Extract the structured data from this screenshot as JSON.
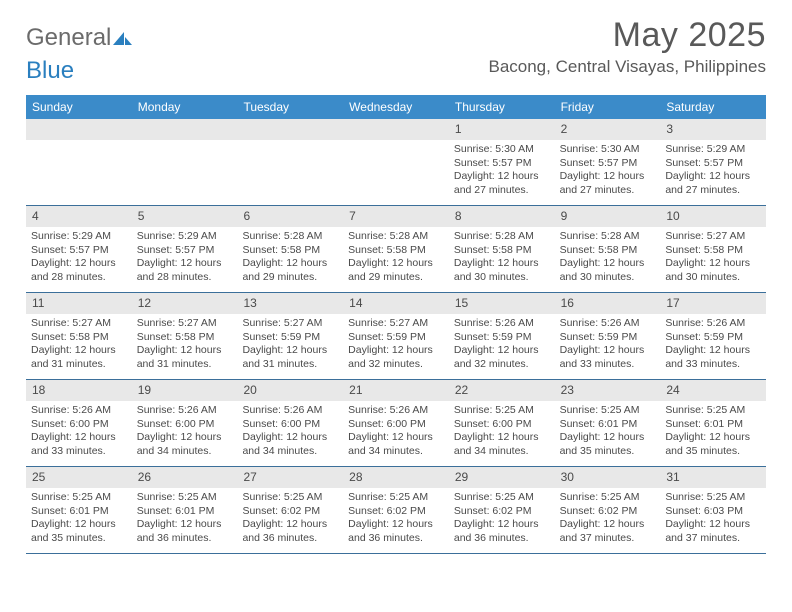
{
  "brand": {
    "general": "General",
    "blue": "Blue"
  },
  "title": "May 2025",
  "location": "Bacong, Central Visayas, Philippines",
  "colors": {
    "header_bg": "#3b8bc9",
    "week_border": "#3b6f9a",
    "daynum_bg": "#e8e8e8",
    "text": "#4a4a4a",
    "logo_gray": "#6b6b6b",
    "logo_blue": "#2a7fbf"
  },
  "daysOfWeek": [
    "Sunday",
    "Monday",
    "Tuesday",
    "Wednesday",
    "Thursday",
    "Friday",
    "Saturday"
  ],
  "weeks": [
    [
      null,
      null,
      null,
      null,
      {
        "n": "1",
        "sr": "5:30 AM",
        "ss": "5:57 PM",
        "dl": "12 hours and 27 minutes."
      },
      {
        "n": "2",
        "sr": "5:30 AM",
        "ss": "5:57 PM",
        "dl": "12 hours and 27 minutes."
      },
      {
        "n": "3",
        "sr": "5:29 AM",
        "ss": "5:57 PM",
        "dl": "12 hours and 27 minutes."
      }
    ],
    [
      {
        "n": "4",
        "sr": "5:29 AM",
        "ss": "5:57 PM",
        "dl": "12 hours and 28 minutes."
      },
      {
        "n": "5",
        "sr": "5:29 AM",
        "ss": "5:57 PM",
        "dl": "12 hours and 28 minutes."
      },
      {
        "n": "6",
        "sr": "5:28 AM",
        "ss": "5:58 PM",
        "dl": "12 hours and 29 minutes."
      },
      {
        "n": "7",
        "sr": "5:28 AM",
        "ss": "5:58 PM",
        "dl": "12 hours and 29 minutes."
      },
      {
        "n": "8",
        "sr": "5:28 AM",
        "ss": "5:58 PM",
        "dl": "12 hours and 30 minutes."
      },
      {
        "n": "9",
        "sr": "5:28 AM",
        "ss": "5:58 PM",
        "dl": "12 hours and 30 minutes."
      },
      {
        "n": "10",
        "sr": "5:27 AM",
        "ss": "5:58 PM",
        "dl": "12 hours and 30 minutes."
      }
    ],
    [
      {
        "n": "11",
        "sr": "5:27 AM",
        "ss": "5:58 PM",
        "dl": "12 hours and 31 minutes."
      },
      {
        "n": "12",
        "sr": "5:27 AM",
        "ss": "5:58 PM",
        "dl": "12 hours and 31 minutes."
      },
      {
        "n": "13",
        "sr": "5:27 AM",
        "ss": "5:59 PM",
        "dl": "12 hours and 31 minutes."
      },
      {
        "n": "14",
        "sr": "5:27 AM",
        "ss": "5:59 PM",
        "dl": "12 hours and 32 minutes."
      },
      {
        "n": "15",
        "sr": "5:26 AM",
        "ss": "5:59 PM",
        "dl": "12 hours and 32 minutes."
      },
      {
        "n": "16",
        "sr": "5:26 AM",
        "ss": "5:59 PM",
        "dl": "12 hours and 33 minutes."
      },
      {
        "n": "17",
        "sr": "5:26 AM",
        "ss": "5:59 PM",
        "dl": "12 hours and 33 minutes."
      }
    ],
    [
      {
        "n": "18",
        "sr": "5:26 AM",
        "ss": "6:00 PM",
        "dl": "12 hours and 33 minutes."
      },
      {
        "n": "19",
        "sr": "5:26 AM",
        "ss": "6:00 PM",
        "dl": "12 hours and 34 minutes."
      },
      {
        "n": "20",
        "sr": "5:26 AM",
        "ss": "6:00 PM",
        "dl": "12 hours and 34 minutes."
      },
      {
        "n": "21",
        "sr": "5:26 AM",
        "ss": "6:00 PM",
        "dl": "12 hours and 34 minutes."
      },
      {
        "n": "22",
        "sr": "5:25 AM",
        "ss": "6:00 PM",
        "dl": "12 hours and 34 minutes."
      },
      {
        "n": "23",
        "sr": "5:25 AM",
        "ss": "6:01 PM",
        "dl": "12 hours and 35 minutes."
      },
      {
        "n": "24",
        "sr": "5:25 AM",
        "ss": "6:01 PM",
        "dl": "12 hours and 35 minutes."
      }
    ],
    [
      {
        "n": "25",
        "sr": "5:25 AM",
        "ss": "6:01 PM",
        "dl": "12 hours and 35 minutes."
      },
      {
        "n": "26",
        "sr": "5:25 AM",
        "ss": "6:01 PM",
        "dl": "12 hours and 36 minutes."
      },
      {
        "n": "27",
        "sr": "5:25 AM",
        "ss": "6:02 PM",
        "dl": "12 hours and 36 minutes."
      },
      {
        "n": "28",
        "sr": "5:25 AM",
        "ss": "6:02 PM",
        "dl": "12 hours and 36 minutes."
      },
      {
        "n": "29",
        "sr": "5:25 AM",
        "ss": "6:02 PM",
        "dl": "12 hours and 36 minutes."
      },
      {
        "n": "30",
        "sr": "5:25 AM",
        "ss": "6:02 PM",
        "dl": "12 hours and 37 minutes."
      },
      {
        "n": "31",
        "sr": "5:25 AM",
        "ss": "6:03 PM",
        "dl": "12 hours and 37 minutes."
      }
    ]
  ],
  "labels": {
    "sunrise": "Sunrise: ",
    "sunset": "Sunset: ",
    "daylight": "Daylight: "
  }
}
